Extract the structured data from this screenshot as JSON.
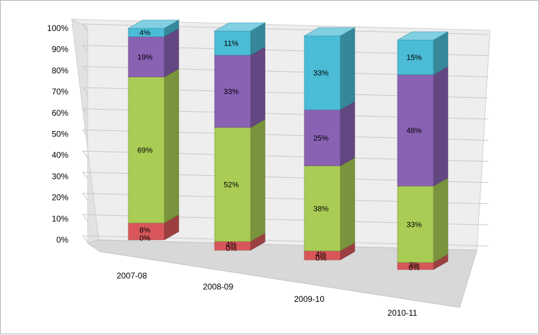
{
  "chart_data": {
    "type": "bar",
    "stacked": true,
    "percent_stacked": true,
    "three_d": true,
    "categories": [
      "2007-08",
      "2008-09",
      "2009-10",
      "2010-11"
    ],
    "series": [
      {
        "color": "#c0504d",
        "values": [
          0,
          0,
          0,
          0
        ],
        "labels": [
          "0%",
          "0%",
          "0%",
          "0%"
        ]
      },
      {
        "color": "#d9575a",
        "values": [
          8,
          4,
          4,
          3
        ],
        "labels": [
          "8%",
          "4%",
          "4%",
          "3%"
        ]
      },
      {
        "color": "#a9cc55",
        "values": [
          69,
          52,
          38,
          33
        ],
        "labels": [
          "69%",
          "52%",
          "38%",
          "33%"
        ]
      },
      {
        "color": "#8a62b4",
        "values": [
          19,
          33,
          25,
          48
        ],
        "labels": [
          "19%",
          "33%",
          "25%",
          "48%"
        ]
      },
      {
        "color": "#4bbcd6",
        "values": [
          4,
          11,
          33,
          15
        ],
        "labels": [
          "4%",
          "11%",
          "33%",
          "15%"
        ]
      }
    ],
    "y_ticks": [
      "0%",
      "10%",
      "20%",
      "30%",
      "40%",
      "50%",
      "60%",
      "70%",
      "80%",
      "90%",
      "100%"
    ],
    "ylim": [
      0,
      100
    ],
    "grid": true,
    "legend": "none",
    "title": "",
    "xlabel": "",
    "ylabel": ""
  }
}
